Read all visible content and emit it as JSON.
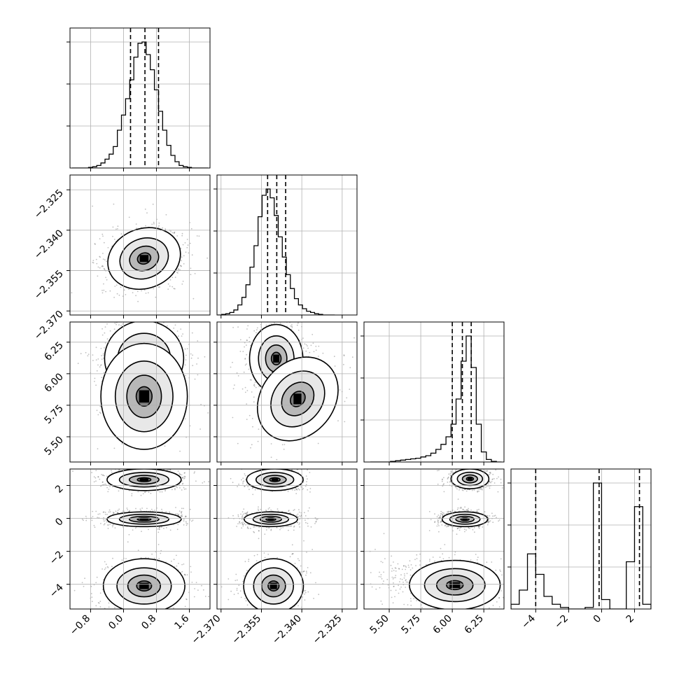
{
  "chart_data": {
    "type": "corner",
    "parameters": [
      {
        "range": [
          -1.3,
          2.1
        ],
        "ticks": [
          -0.8,
          0.0,
          0.8,
          1.6
        ],
        "tick_labels": [
          "−0.8",
          "0.0",
          "0.8",
          "1.6"
        ],
        "quantiles": [
          0.17,
          0.52,
          0.85
        ]
      },
      {
        "range": [
          -2.3715,
          -2.3195
        ],
        "ticks": [
          -2.37,
          -2.355,
          -2.34,
          -2.325
        ],
        "tick_labels": [
          "−2.370",
          "−2.355",
          "−2.340",
          "−2.325"
        ],
        "quantiles": [
          -2.3527,
          -2.3493,
          -2.346
        ]
      },
      {
        "range": [
          5.3,
          6.41
        ],
        "ticks": [
          5.5,
          5.75,
          6.0,
          6.25
        ],
        "tick_labels": [
          "5.50",
          "5.75",
          "6.00",
          "6.25"
        ],
        "quantiles": [
          6.0,
          6.08,
          6.15
        ]
      },
      {
        "range": [
          -5.5,
          3.0
        ],
        "ticks": [
          -4,
          -2,
          0,
          2
        ],
        "tick_labels": [
          "−4",
          "−2",
          "0",
          "2"
        ],
        "quantiles": [
          -4.0,
          -0.15,
          2.3
        ]
      }
    ],
    "histograms": [
      {
        "x": [
          -1.2,
          -1.1,
          -1.0,
          -0.9,
          -0.8,
          -0.7,
          -0.6,
          -0.5,
          -0.4,
          -0.3,
          -0.2,
          -0.1,
          0.0,
          0.1,
          0.2,
          0.3,
          0.4,
          0.5,
          0.6,
          0.7,
          0.8,
          0.9,
          1.0,
          1.1,
          1.2,
          1.3,
          1.4,
          1.5,
          1.6,
          1.7,
          1.8,
          1.9,
          2.0
        ],
        "counts": [
          0,
          0,
          0,
          0,
          0.005,
          0.01,
          0.02,
          0.04,
          0.07,
          0.11,
          0.17,
          0.3,
          0.42,
          0.55,
          0.7,
          0.88,
          0.99,
          1.0,
          0.9,
          0.78,
          0.62,
          0.45,
          0.3,
          0.18,
          0.1,
          0.05,
          0.02,
          0.01,
          0.005,
          0,
          0,
          0,
          0
        ]
      },
      {
        "x": [
          -2.3705,
          -2.369,
          -2.3675,
          -2.366,
          -2.3645,
          -2.363,
          -2.3615,
          -2.36,
          -2.3585,
          -2.357,
          -2.3555,
          -2.354,
          -2.3525,
          -2.351,
          -2.3495,
          -2.348,
          -2.3465,
          -2.345,
          -2.3435,
          -2.342,
          -2.3405,
          -2.339,
          -2.3375,
          -2.336,
          -2.3345,
          -2.333,
          -2.3315,
          -2.33,
          -2.3285
        ],
        "counts": [
          0,
          0.005,
          0.01,
          0.02,
          0.04,
          0.08,
          0.14,
          0.24,
          0.38,
          0.55,
          0.78,
          0.95,
          1.0,
          0.93,
          0.79,
          0.62,
          0.46,
          0.32,
          0.21,
          0.13,
          0.08,
          0.05,
          0.03,
          0.02,
          0.01,
          0.005,
          0,
          0,
          0
        ]
      },
      {
        "x": [
          5.37,
          5.41,
          5.45,
          5.49,
          5.53,
          5.57,
          5.61,
          5.65,
          5.69,
          5.73,
          5.77,
          5.81,
          5.85,
          5.89,
          5.93,
          5.97,
          6.01,
          6.05,
          6.09,
          6.13,
          6.17,
          6.21,
          6.25,
          6.29,
          6.33,
          6.37
        ],
        "counts": [
          0,
          0,
          0,
          0,
          0.005,
          0.01,
          0.015,
          0.02,
          0.025,
          0.03,
          0.04,
          0.05,
          0.07,
          0.1,
          0.14,
          0.2,
          0.3,
          0.5,
          0.8,
          1.0,
          0.75,
          0.3,
          0.08,
          0.02,
          0.005,
          0
        ]
      },
      {
        "x": [
          -5.25,
          -4.75,
          -4.25,
          -3.75,
          -3.25,
          -2.75,
          -2.25,
          -1.75,
          -1.25,
          -0.75,
          -0.25,
          0.25,
          0.75,
          1.25,
          1.75,
          2.25,
          2.75
        ],
        "counts": [
          0.03,
          0.12,
          0.35,
          0.22,
          0.08,
          0.03,
          0.01,
          0.0,
          0.0,
          0.01,
          0.8,
          0.06,
          0.0,
          0.0,
          0.3,
          0.65,
          0.03
        ]
      }
    ],
    "pairs": [
      {
        "row": 1,
        "col": 0,
        "blobs": [
          {
            "cx": 0.5,
            "cy": -2.3505,
            "sx": 0.3,
            "sy": 0.0037,
            "rot": -20,
            "density": 1.0
          }
        ]
      },
      {
        "row": 2,
        "col": 0,
        "blobs": [
          {
            "cx": 0.5,
            "cy": 6.12,
            "sx": 0.32,
            "sy": 0.1,
            "rot": 0,
            "density": 1.0
          },
          {
            "cx": 0.5,
            "cy": 5.82,
            "sx": 0.35,
            "sy": 0.14,
            "rot": 0,
            "density": 0.35
          }
        ]
      },
      {
        "row": 2,
        "col": 1,
        "blobs": [
          {
            "cx": -2.3495,
            "cy": 6.12,
            "sx": 0.0033,
            "sy": 0.09,
            "rot": 0,
            "density": 1.0
          },
          {
            "cx": -2.3415,
            "cy": 5.8,
            "sx": 0.0045,
            "sy": 0.12,
            "rot": 40,
            "density": 0.35
          }
        ]
      },
      {
        "row": 3,
        "col": 0,
        "blobs": [
          {
            "cx": 0.5,
            "cy": 2.35,
            "sx": 0.3,
            "sy": 0.22,
            "rot": 0,
            "density": 0.7
          },
          {
            "cx": 0.5,
            "cy": -0.05,
            "sx": 0.3,
            "sy": 0.15,
            "rot": 0,
            "density": 1.0
          },
          {
            "cx": 0.5,
            "cy": -4.1,
            "sx": 0.33,
            "sy": 0.55,
            "rot": 0,
            "density": 0.6
          }
        ]
      },
      {
        "row": 3,
        "col": 1,
        "blobs": [
          {
            "cx": -2.35,
            "cy": 2.35,
            "sx": 0.0035,
            "sy": 0.22,
            "rot": 0,
            "density": 0.7
          },
          {
            "cx": -2.3515,
            "cy": -0.05,
            "sx": 0.0033,
            "sy": 0.15,
            "rot": 0,
            "density": 1.0
          },
          {
            "cx": -2.3505,
            "cy": -4.1,
            "sx": 0.0037,
            "sy": 0.55,
            "rot": 0,
            "density": 0.6
          }
        ]
      },
      {
        "row": 3,
        "col": 2,
        "blobs": [
          {
            "cx": 6.14,
            "cy": 2.4,
            "sx": 0.05,
            "sy": 0.2,
            "rot": 0,
            "density": 1.0
          },
          {
            "cx": 6.1,
            "cy": -0.05,
            "sx": 0.06,
            "sy": 0.15,
            "rot": 0,
            "density": 1.0
          },
          {
            "cx": 6.02,
            "cy": -4.05,
            "sx": 0.12,
            "sy": 0.5,
            "rot": 0,
            "density": 0.6
          },
          {
            "cx": 5.72,
            "cy": -3.6,
            "sx": 0.15,
            "sy": 0.45,
            "rot": 0,
            "density": 0.2
          }
        ]
      }
    ]
  }
}
